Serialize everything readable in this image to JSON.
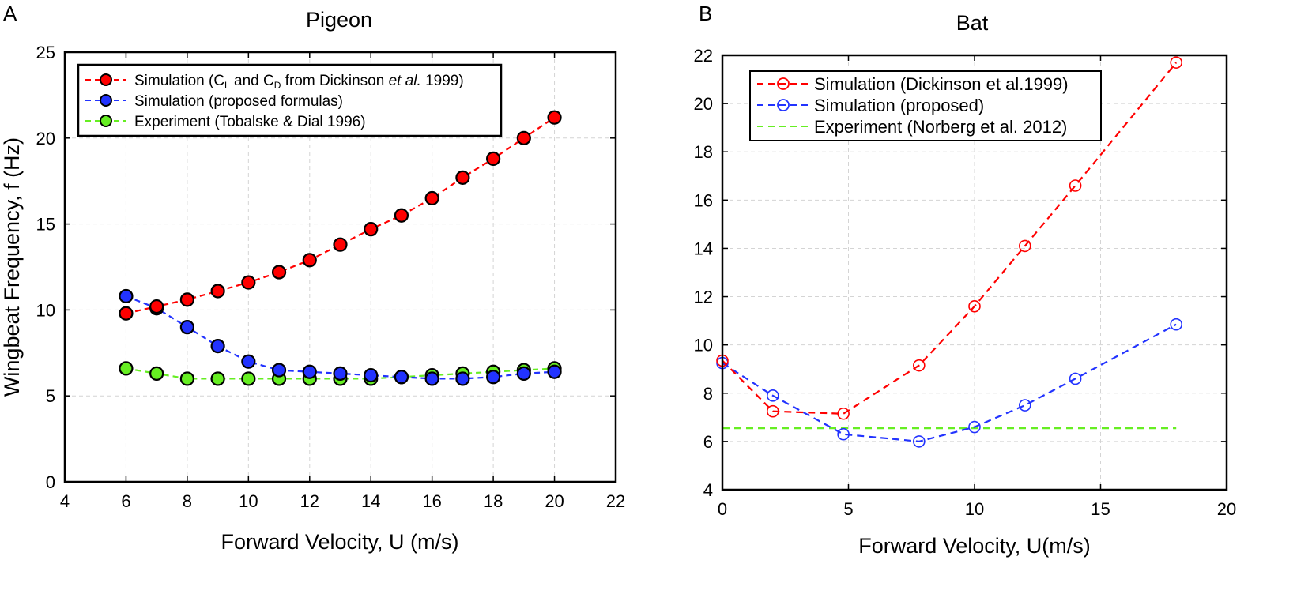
{
  "panels": [
    {
      "label": "A",
      "chart_data": {
        "type": "line",
        "title": "Pigeon",
        "xlabel": "Forward Velocity, U (m/s)",
        "ylabel": "Wingbeat Frequency, f (Hz)",
        "xlim": [
          4,
          22
        ],
        "ylim": [
          0,
          25
        ],
        "xticks": [
          4,
          6,
          8,
          10,
          12,
          14,
          16,
          18,
          20,
          22
        ],
        "yticks": [
          0,
          5,
          10,
          15,
          20,
          25
        ],
        "grid": true,
        "legend_position": "top-left",
        "x": [
          6,
          7,
          8,
          9,
          10,
          11,
          12,
          13,
          14,
          15,
          16,
          17,
          18,
          19,
          20
        ],
        "series": [
          {
            "name": "Simulation (CL and CD from Dickinson et al. 1999)",
            "legend": {
              "t1": "Simulation (C",
              "s1": "L",
              "t2": " and C",
              "s2": "D",
              "t3": " from Dickinson ",
              "it": "et al.",
              "t4": " 1999)"
            },
            "color": "#ff0000",
            "marker": "filled-circle",
            "values": [
              9.8,
              10.2,
              10.6,
              11.1,
              11.6,
              12.2,
              12.9,
              13.8,
              14.7,
              15.5,
              16.5,
              17.7,
              18.8,
              20.0,
              21.2
            ]
          },
          {
            "name": "Simulation (proposed formulas)",
            "color": "#2233ff",
            "marker": "filled-circle",
            "values": [
              10.8,
              10.1,
              9.0,
              7.9,
              7.0,
              6.5,
              6.4,
              6.3,
              6.2,
              6.1,
              6.0,
              6.0,
              6.1,
              6.3,
              6.4
            ]
          },
          {
            "name": "Experiment (Tobalske & Dial 1996)",
            "color": "#66ee22",
            "marker": "filled-circle",
            "values": [
              6.6,
              6.3,
              6.0,
              6.0,
              6.0,
              6.0,
              6.0,
              6.0,
              6.0,
              6.1,
              6.2,
              6.3,
              6.4,
              6.5,
              6.6
            ]
          }
        ]
      }
    },
    {
      "label": "B",
      "chart_data": {
        "type": "line",
        "title": "Bat",
        "xlabel": "Forward Velocity, U(m/s)",
        "ylabel": "",
        "xlim": [
          0,
          20
        ],
        "ylim": [
          4,
          22
        ],
        "xticks": [
          0,
          5,
          10,
          15,
          20
        ],
        "yticks": [
          4,
          6,
          8,
          10,
          12,
          14,
          16,
          18,
          20,
          22
        ],
        "grid": true,
        "legend_position": "top-left",
        "series": [
          {
            "name": "Simulation (Dickinson et al.1999)",
            "color": "#ff0000",
            "marker": "open-circle",
            "x": [
              0,
              2,
              4.8,
              7.8,
              10,
              12,
              14,
              18
            ],
            "values": [
              9.35,
              7.25,
              7.15,
              9.15,
              11.6,
              14.1,
              16.6,
              21.7
            ]
          },
          {
            "name": "Simulation (proposed)",
            "color": "#2233ff",
            "marker": "open-circle",
            "x": [
              0,
              2,
              4.8,
              7.8,
              10,
              12,
              14,
              18
            ],
            "values": [
              9.25,
              7.9,
              6.3,
              6.0,
              6.6,
              7.5,
              8.6,
              10.85
            ]
          },
          {
            "name": "Experiment (Norberg et al. 2012)",
            "color": "#66ee22",
            "marker": "none",
            "x": [
              0,
              18
            ],
            "values": [
              6.55,
              6.55
            ]
          }
        ]
      }
    }
  ]
}
